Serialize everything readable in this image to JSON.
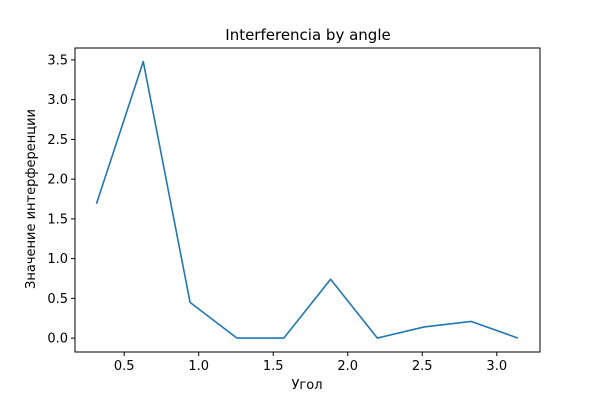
{
  "chart_data": {
    "type": "line",
    "title": "Interferencia by angle",
    "xlabel": "Угол",
    "ylabel": "Значение интерференции",
    "xlim": [
      0.17,
      3.29
    ],
    "ylim": [
      -0.175,
      3.65
    ],
    "xticks": [
      0.5,
      1.0,
      1.5,
      2.0,
      2.5,
      3.0
    ],
    "xtick_labels": [
      "0.5",
      "1.0",
      "1.5",
      "2.0",
      "2.5",
      "3.0"
    ],
    "yticks": [
      0.0,
      0.5,
      1.0,
      1.5,
      2.0,
      2.5,
      3.0,
      3.5
    ],
    "ytick_labels": [
      "0.0",
      "0.5",
      "1.0",
      "1.5",
      "2.0",
      "2.5",
      "3.0",
      "3.5"
    ],
    "grid": false,
    "series": [
      {
        "color": "#1f77b4",
        "x": [
          0.314,
          0.628,
          0.942,
          1.257,
          1.571,
          1.885,
          2.199,
          2.513,
          2.827,
          3.142
        ],
        "y": [
          1.69,
          3.48,
          0.45,
          0.0,
          0.0,
          0.74,
          0.0,
          0.14,
          0.21,
          0.0
        ]
      }
    ]
  }
}
